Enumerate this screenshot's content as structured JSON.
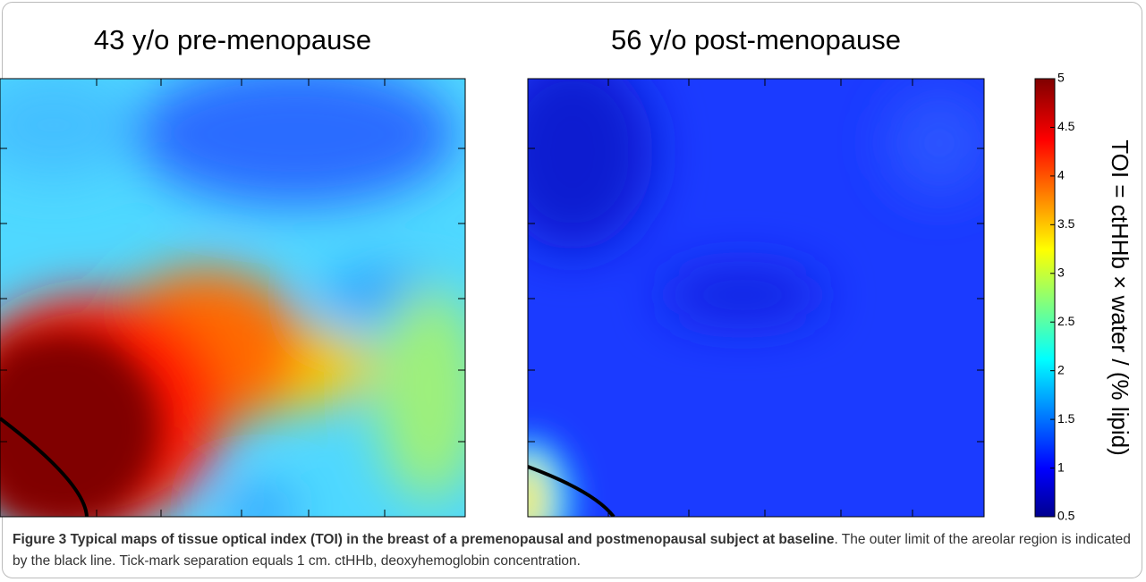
{
  "chart_data": {
    "type": "heatmap",
    "panels": [
      {
        "title": "43 y/o pre-menopause"
      },
      {
        "title": "56 y/o post-menopause"
      }
    ],
    "colorbar": {
      "label": "TOI = ctHHb × water / (% lipid)",
      "ylim": [
        0.5,
        5
      ],
      "yticks": [
        0.5,
        1,
        1.5,
        2,
        2.5,
        3,
        3.5,
        4,
        4.5,
        5
      ]
    }
  },
  "caption": {
    "bold": "Figure 3 Typical maps of tissue optical index (TOI) in the breast of a premenopausal and postmenopausal subject at baseline",
    "text": ". The outer limit of the areolar region is indicated by the black line. Tick-mark separation equals 1 cm. ctHHb, deoxyhemoglobin concentration."
  }
}
